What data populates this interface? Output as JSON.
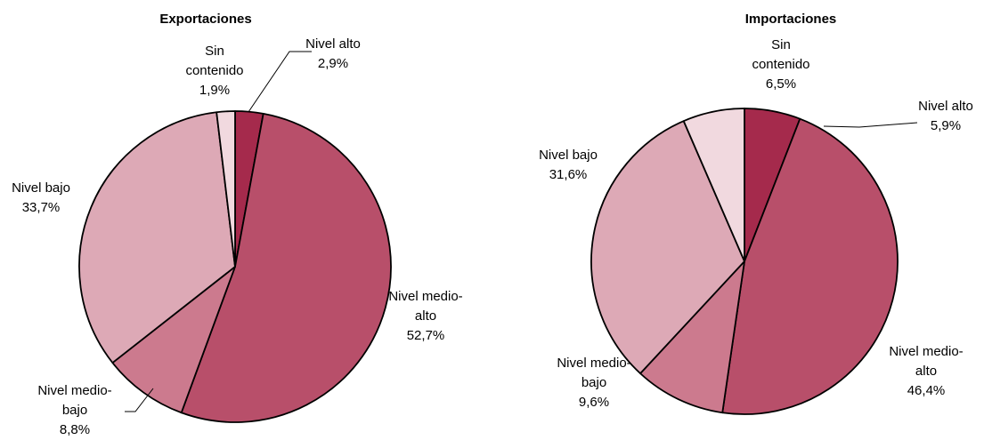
{
  "chart_data": [
    {
      "type": "pie",
      "title": "Exportaciones",
      "slices": [
        {
          "label": [
            "Nivel alto"
          ],
          "value_label": "2,9%",
          "value": 2.9,
          "color": "#A52A4C"
        },
        {
          "label": [
            "Nivel medio-",
            "alto"
          ],
          "value_label": "52,7%",
          "value": 52.7,
          "color": "#B84F6A"
        },
        {
          "label": [
            "Nivel medio-",
            "bajo"
          ],
          "value_label": "8,8%",
          "value": 8.8,
          "color": "#CC7A8E"
        },
        {
          "label": [
            "Nivel bajo"
          ],
          "value_label": "33,7%",
          "value": 33.7,
          "color": "#DDA9B6"
        },
        {
          "label": [
            "Sin",
            "contenido"
          ],
          "value_label": "1,9%",
          "value": 1.9,
          "color": "#F1D9DF"
        }
      ]
    },
    {
      "type": "pie",
      "title": "Importaciones",
      "slices": [
        {
          "label": [
            "Nivel alto"
          ],
          "value_label": "5,9%",
          "value": 5.9,
          "color": "#A52A4C"
        },
        {
          "label": [
            "Nivel medio-",
            "alto"
          ],
          "value_label": "46,4%",
          "value": 46.4,
          "color": "#B84F6A"
        },
        {
          "label": [
            "Nivel medio-",
            "bajo"
          ],
          "value_label": "9,6%",
          "value": 9.6,
          "color": "#CC7A8E"
        },
        {
          "label": [
            "Nivel bajo"
          ],
          "value_label": "31,6%",
          "value": 31.6,
          "color": "#DDA9B6"
        },
        {
          "label": [
            "Sin",
            "contenido"
          ],
          "value_label": "6,5%",
          "value": 6.5,
          "color": "#F1D9DF"
        }
      ]
    }
  ]
}
